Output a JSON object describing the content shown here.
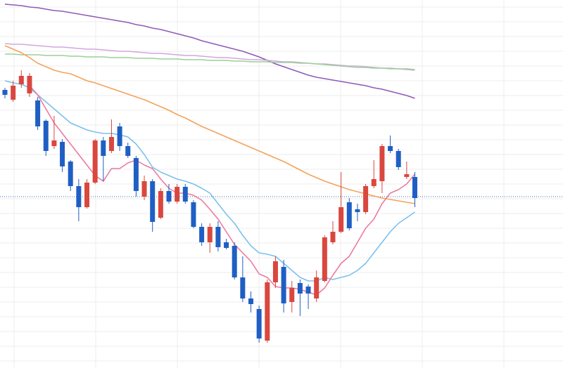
{
  "chart_data": {
    "type": "candlestick",
    "grid": true,
    "ylim": [
      0,
      524
    ],
    "up_color": "#d9473f",
    "down_color": "#1f5fc4",
    "categories": [
      null,
      null,
      null,
      null,
      null,
      null,
      null,
      null,
      null,
      null,
      null,
      null,
      null,
      null,
      null,
      null,
      null,
      null,
      null,
      null,
      null,
      null,
      null,
      null,
      null,
      null,
      null,
      null,
      null,
      null,
      null,
      null,
      null,
      null,
      null,
      null,
      null,
      null,
      null,
      null,
      null,
      null,
      null,
      null,
      null,
      null,
      null,
      null,
      null,
      null,
      null
    ],
    "open": [
      396,
      382,
      404,
      391,
      381,
      352,
      316,
      322,
      294,
      259,
      229,
      264,
      324,
      309,
      344,
      316,
      299,
      244,
      266,
      214,
      252,
      237,
      258,
      236,
      201,
      179,
      201,
      179,
      174,
      129,
      99,
      84,
      39,
      122,
      144,
      94,
      121,
      116,
      99,
      124,
      179,
      194,
      236,
      226,
      222,
      259,
      266,
      316,
      309,
      272,
      272
    ],
    "close": [
      389,
      402,
      416,
      416,
      344,
      309,
      324,
      287,
      259,
      229,
      264,
      324,
      302,
      329,
      316,
      302,
      252,
      266,
      208,
      252,
      237,
      258,
      237,
      201,
      179,
      201,
      172,
      171,
      129,
      99,
      91,
      42,
      122,
      152,
      92,
      114,
      106,
      106,
      129,
      186,
      194,
      229,
      199,
      222,
      259,
      269,
      316,
      309,
      286,
      276,
      242
    ],
    "high": [
      399,
      409,
      424,
      420,
      386,
      354,
      359,
      326,
      296,
      269,
      269,
      326,
      329,
      354,
      349,
      321,
      302,
      274,
      269,
      256,
      262,
      262,
      262,
      239,
      206,
      206,
      209,
      184,
      179,
      159,
      109,
      89,
      126,
      159,
      154,
      124,
      126,
      119,
      139,
      189,
      209,
      279,
      242,
      234,
      262,
      296,
      319,
      331,
      312,
      294,
      279
    ],
    "low": [
      384,
      379,
      399,
      386,
      339,
      302,
      312,
      279,
      252,
      209,
      227,
      262,
      266,
      306,
      309,
      299,
      244,
      239,
      194,
      212,
      234,
      234,
      234,
      199,
      174,
      164,
      166,
      169,
      126,
      94,
      79,
      36,
      36,
      114,
      79,
      79,
      74,
      84,
      94,
      122,
      176,
      192,
      196,
      209,
      219,
      256,
      249,
      306,
      282,
      269,
      229
    ],
    "price_line": 244,
    "price_line_color": "#3a6fb0",
    "lines": [
      {
        "color": "#8e5bb8",
        "values": [
          518,
          517,
          516,
          514,
          513,
          511,
          509,
          508,
          506,
          504,
          502,
          500,
          498,
          496,
          494,
          492,
          489,
          487,
          484,
          482,
          479,
          476,
          473,
          470,
          466,
          463,
          460,
          457,
          454,
          451,
          447,
          443,
          438,
          433,
          429,
          425,
          421,
          417,
          414,
          412,
          410,
          408,
          406,
          404,
          402,
          399,
          397,
          394,
          391,
          388,
          384
        ]
      },
      {
        "color": "#d4a6e0",
        "values": [
          462,
          461,
          461,
          460,
          459,
          458,
          457,
          457,
          456,
          455,
          454,
          454,
          453,
          452,
          451,
          451,
          450,
          449,
          448,
          448,
          447,
          446,
          445,
          445,
          444,
          443,
          442,
          442,
          441,
          440,
          439,
          439,
          438,
          437,
          436,
          436,
          435,
          434,
          433,
          433,
          432,
          431,
          430,
          430,
          429,
          428,
          427,
          427,
          426,
          425,
          424
        ]
      },
      {
        "color": "#9ad19a",
        "values": [
          447,
          447,
          446,
          446,
          446,
          445,
          445,
          445,
          444,
          444,
          443,
          443,
          443,
          442,
          442,
          442,
          441,
          441,
          441,
          440,
          440,
          440,
          439,
          439,
          439,
          438,
          438,
          438,
          437,
          437,
          436,
          436,
          436,
          435,
          435,
          435,
          434,
          434,
          433,
          432,
          431,
          430,
          429,
          428,
          428,
          427,
          427,
          426,
          426,
          426,
          425
        ]
      },
      {
        "color": "#f5a25a",
        "values": [
          459,
          454,
          449,
          442,
          434,
          429,
          424,
          421,
          419,
          414,
          409,
          406,
          402,
          398,
          394,
          390,
          386,
          382,
          377,
          372,
          367,
          361,
          356,
          350,
          344,
          339,
          334,
          329,
          324,
          319,
          314,
          309,
          304,
          299,
          294,
          288,
          282,
          276,
          271,
          266,
          262,
          258,
          254,
          251,
          248,
          245,
          242,
          240,
          238,
          236,
          234
        ]
      },
      {
        "color": "#7cc0ee",
        "values": [
          409,
          406,
          404,
          399,
          389,
          379,
          369,
          359,
          349,
          344,
          339,
          336,
          334,
          334,
          332,
          329,
          319,
          304,
          286,
          279,
          274,
          269,
          266,
          262,
          256,
          249,
          234,
          219,
          206,
          189,
          174,
          164,
          162,
          159,
          149,
          139,
          129,
          124,
          124,
          129,
          126,
          129,
          132,
          139,
          149,
          164,
          179,
          194,
          206,
          214,
          222
        ]
      },
      {
        "color": "#ec7a9c",
        "values": [
          null,
          null,
          null,
          402,
          389,
          369,
          349,
          334,
          319,
          304,
          289,
          274,
          266,
          284,
          284,
          292,
          296,
          289,
          284,
          269,
          256,
          249,
          249,
          246,
          239,
          226,
          212,
          194,
          176,
          164,
          152,
          134,
          129,
          116,
          114,
          114,
          112,
          108,
          104,
          114,
          132,
          149,
          159,
          179,
          199,
          212,
          234,
          249,
          254,
          262,
          276
        ]
      }
    ]
  }
}
